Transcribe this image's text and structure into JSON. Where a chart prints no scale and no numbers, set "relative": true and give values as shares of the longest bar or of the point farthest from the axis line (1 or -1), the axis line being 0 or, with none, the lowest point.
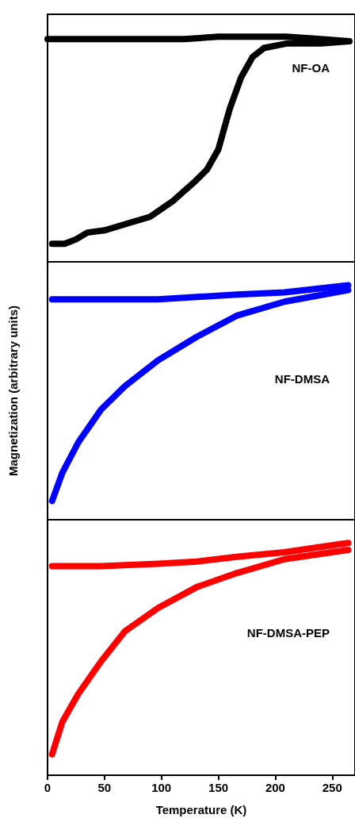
{
  "chart_data": [
    {
      "type": "line",
      "relative": true,
      "annotations": [
        "NF-OA"
      ],
      "xlim": [
        0,
        270
      ],
      "xticks": [
        0,
        50,
        100,
        150,
        200,
        250
      ],
      "tick_labels": false,
      "grid": false,
      "line_style": "solid",
      "series": [
        {
          "color": "#000000",
          "x": [
            0,
            30,
            60,
            90,
            120,
            150,
            180,
            210,
            240,
            265
          ],
          "values": [
            0.99,
            0.99,
            0.99,
            0.99,
            0.99,
            1.0,
            1.0,
            1.0,
            0.99,
            0.98
          ]
        },
        {
          "color": "#000000",
          "x": [
            4,
            15,
            25,
            35,
            50,
            70,
            90,
            110,
            130,
            140,
            150,
            160,
            170,
            180,
            190,
            210,
            240,
            265
          ],
          "values": [
            0.08,
            0.08,
            0.1,
            0.13,
            0.14,
            0.17,
            0.2,
            0.27,
            0.36,
            0.41,
            0.5,
            0.68,
            0.82,
            0.91,
            0.95,
            0.97,
            0.97,
            0.98
          ]
        }
      ]
    },
    {
      "type": "line",
      "relative": true,
      "ylabel": "Magnetization (arbitrary units)",
      "annotations": [
        "NF-DMSA"
      ],
      "xlim": [
        0,
        270
      ],
      "xticks": [
        0,
        50,
        100,
        150,
        200,
        250
      ],
      "tick_labels": false,
      "grid": false,
      "line_style": "solid",
      "series": [
        {
          "color": "#0000ff",
          "x": [
            4,
            47,
            97,
            131,
            166,
            208,
            264
          ],
          "values": [
            0.94,
            0.94,
            0.94,
            0.95,
            0.96,
            0.97,
            1.0
          ]
        },
        {
          "color": "#0000ff",
          "x": [
            4,
            13,
            27,
            47,
            68,
            97,
            131,
            166,
            208,
            264
          ],
          "values": [
            0.08,
            0.2,
            0.33,
            0.47,
            0.57,
            0.68,
            0.78,
            0.87,
            0.93,
            0.98
          ]
        }
      ]
    },
    {
      "type": "line",
      "relative": true,
      "xlabel": "Temperature (K)",
      "annotations": [
        "NF-DMSA-PEP"
      ],
      "xlim": [
        0,
        270
      ],
      "xticks": [
        0,
        50,
        100,
        150,
        200,
        250
      ],
      "tick_labels": "x",
      "grid": false,
      "line_style": "solid",
      "series": [
        {
          "color": "#ff0000",
          "x": [
            4,
            47,
            97,
            131,
            166,
            208,
            264
          ],
          "values": [
            0.9,
            0.9,
            0.91,
            0.92,
            0.94,
            0.96,
            1.0
          ]
        },
        {
          "color": "#ff0000",
          "x": [
            4,
            13,
            27,
            47,
            68,
            97,
            131,
            166,
            208,
            264
          ],
          "values": [
            0.09,
            0.23,
            0.35,
            0.49,
            0.62,
            0.72,
            0.81,
            0.87,
            0.93,
            0.97
          ]
        }
      ]
    }
  ]
}
